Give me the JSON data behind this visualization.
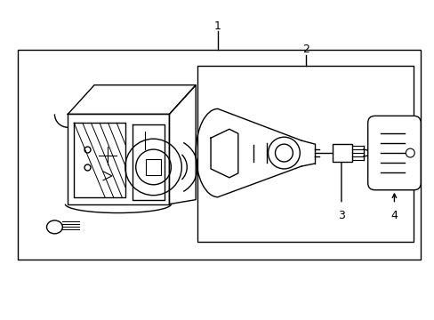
{
  "background_color": "#ffffff",
  "line_color": "#000000",
  "label_1": "1",
  "label_2": "2",
  "label_3": "3",
  "label_4": "4",
  "fig_width": 4.89,
  "fig_height": 3.6
}
